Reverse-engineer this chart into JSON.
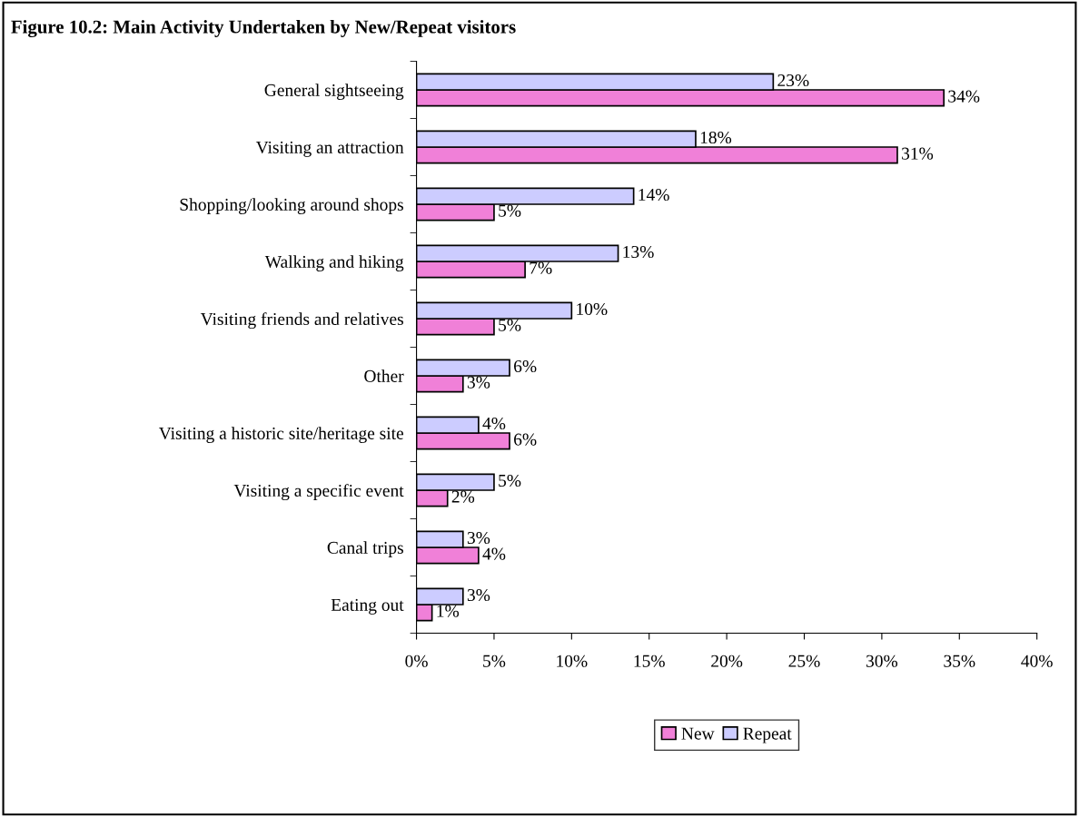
{
  "chart_data": {
    "type": "bar",
    "orientation": "horizontal",
    "title": "Figure 10.2: Main Activity Undertaken by New/Repeat visitors",
    "categories": [
      "General sightseeing",
      "Visiting an attraction",
      "Shopping/looking around shops",
      "Walking and hiking",
      "Visiting friends and relatives",
      "Other",
      "Visiting a historic site/heritage site",
      "Visiting a specific event",
      "Canal trips",
      "Eating out"
    ],
    "series": [
      {
        "name": "New",
        "color": "#f080d8",
        "values": [
          34,
          31,
          5,
          7,
          5,
          3,
          6,
          2,
          4,
          1
        ],
        "value_labels": [
          "34%",
          "31%",
          "5%",
          "7%",
          "5%",
          "3%",
          "6%",
          "2%",
          "4%",
          "1%"
        ]
      },
      {
        "name": "Repeat",
        "color": "#ccccff",
        "values": [
          23,
          18,
          14,
          13,
          10,
          6,
          4,
          5,
          3,
          3
        ],
        "value_labels": [
          "23%",
          "18%",
          "14%",
          "13%",
          "10%",
          "6%",
          "4%",
          "5%",
          "3%",
          "3%"
        ]
      }
    ],
    "xlim": [
      0,
      40
    ],
    "xticks": [
      {
        "value": 0,
        "label": "0%"
      },
      {
        "value": 5,
        "label": "5%"
      },
      {
        "value": 10,
        "label": "10%"
      },
      {
        "value": 15,
        "label": "15%"
      },
      {
        "value": 20,
        "label": "20%"
      },
      {
        "value": 25,
        "label": "25%"
      },
      {
        "value": 30,
        "label": "30%"
      },
      {
        "value": 35,
        "label": "35%"
      },
      {
        "value": 40,
        "label": "40%"
      }
    ],
    "grid": false,
    "legend": "bottom"
  }
}
